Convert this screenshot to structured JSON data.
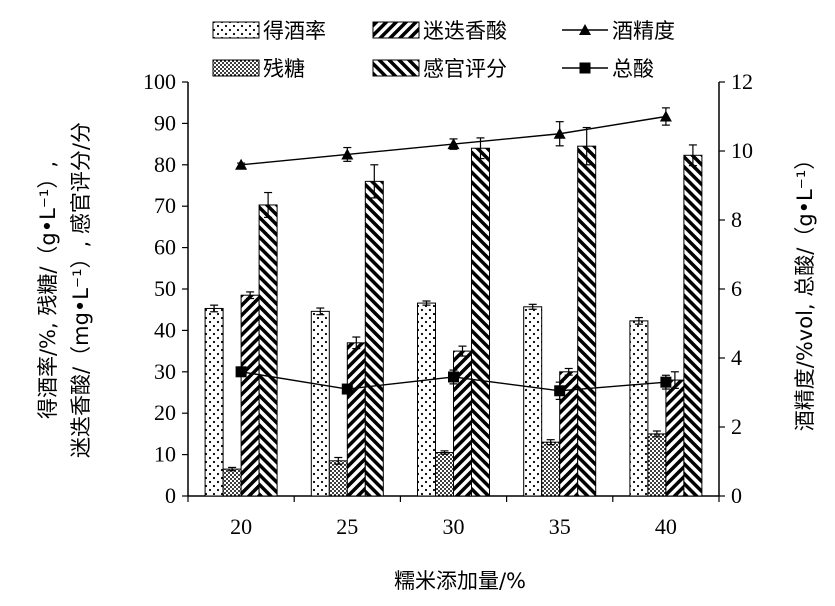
{
  "chart_data": {
    "type": "bar",
    "xlabel": "糯米添加量/%",
    "ylabel_left_line1": "得酒率/%, 残糖/（g•L⁻¹）,",
    "ylabel_left_line2": "迷迭香酸/（mg•L⁻¹）, 感官评分/分",
    "ylabel_right": "酒精度/%vol, 总酸/（g•L⁻¹）",
    "categories": [
      "20",
      "25",
      "30",
      "35",
      "40"
    ],
    "ylim_left": [
      0,
      100
    ],
    "yticks_left": [
      "0",
      "10",
      "20",
      "30",
      "40",
      "50",
      "60",
      "70",
      "80",
      "90",
      "100"
    ],
    "ylim_right": [
      0,
      12
    ],
    "yticks_right": [
      "0",
      "2",
      "4",
      "6",
      "8",
      "10",
      "12"
    ],
    "legend_position": "top",
    "bar_series": [
      {
        "name": "得酒率",
        "pattern": "dots-sparse",
        "values": [
          45.3,
          44.6,
          46.6,
          45.7,
          42.3
        ],
        "errors": [
          0.8,
          0.8,
          0.5,
          0.6,
          0.8
        ]
      },
      {
        "name": "残糖",
        "pattern": "dots-dense",
        "values": [
          6.5,
          8.5,
          10.5,
          13.0,
          15.0
        ],
        "errors": [
          0.4,
          0.8,
          0.4,
          0.6,
          0.7
        ]
      },
      {
        "name": "迷迭香酸",
        "pattern": "hatch-right",
        "values": [
          48.5,
          37.0,
          35.0,
          30.0,
          28.0
        ],
        "errors": [
          0.8,
          1.4,
          1.2,
          0.8,
          2.0
        ]
      },
      {
        "name": "感官评分",
        "pattern": "hatch-left",
        "values": [
          70.3,
          76.0,
          84.0,
          84.5,
          82.3
        ],
        "errors": [
          3.0,
          4.0,
          2.5,
          4.5,
          2.5
        ]
      }
    ],
    "line_series": [
      {
        "name": "酒精度",
        "marker": "triangle",
        "axis": "right",
        "values": [
          9.6,
          9.9,
          10.2,
          10.5,
          11.0
        ],
        "errors": [
          0.05,
          0.2,
          0.15,
          0.35,
          0.25
        ]
      },
      {
        "name": "总酸",
        "marker": "square",
        "axis": "right",
        "values": [
          3.6,
          3.1,
          3.45,
          3.05,
          3.3
        ],
        "errors": [
          0.1,
          0.1,
          0.2,
          0.25,
          0.2
        ]
      }
    ],
    "colors": {
      "stroke": "#000000",
      "background": "#ffffff"
    }
  }
}
